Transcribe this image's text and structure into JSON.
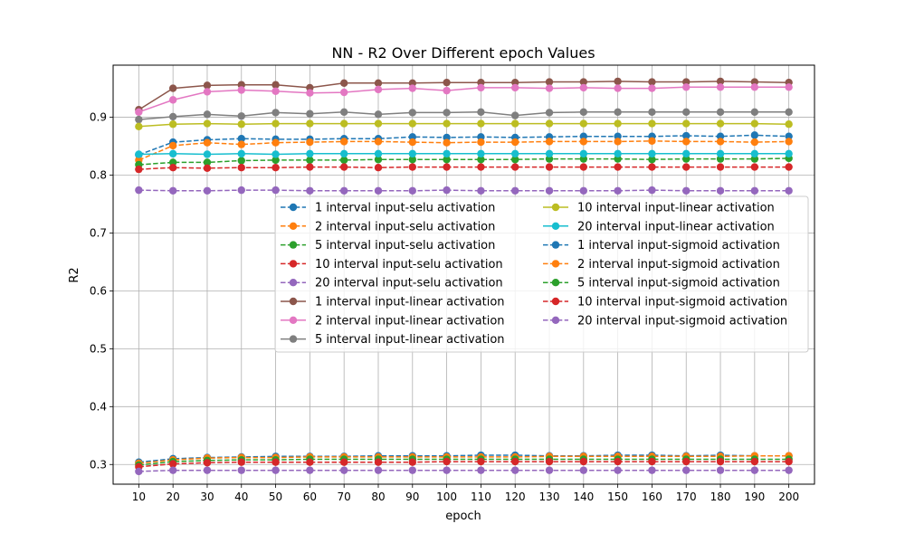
{
  "chart_data": {
    "type": "line",
    "title": "NN - R2 Over Different epoch Values",
    "xlabel": "epoch",
    "ylabel": "R2",
    "x": [
      10,
      20,
      30,
      40,
      50,
      60,
      70,
      80,
      90,
      100,
      110,
      120,
      130,
      140,
      150,
      160,
      170,
      180,
      190,
      200
    ],
    "xticks": [
      "10",
      "20",
      "30",
      "40",
      "50",
      "60",
      "70",
      "80",
      "90",
      "100",
      "110",
      "120",
      "130",
      "140",
      "150",
      "160",
      "170",
      "180",
      "190",
      "200"
    ],
    "yticks": [
      "0.3",
      "0.4",
      "0.5",
      "0.6",
      "0.7",
      "0.8",
      "0.9"
    ],
    "ylim": [
      0.266,
      0.99
    ],
    "xlim": [
      2.5,
      207.5
    ],
    "grid": true,
    "legend_position": "center-right",
    "series": [
      {
        "name": "1 interval input-selu activation",
        "color": "#1f77b4",
        "style": "dashed",
        "values": [
          0.835,
          0.857,
          0.861,
          0.863,
          0.862,
          0.862,
          0.863,
          0.863,
          0.866,
          0.865,
          0.866,
          0.865,
          0.866,
          0.867,
          0.867,
          0.867,
          0.868,
          0.867,
          0.869,
          0.867
        ]
      },
      {
        "name": "2 interval input-selu activation",
        "color": "#ff7f0e",
        "style": "dashed",
        "values": [
          0.826,
          0.851,
          0.856,
          0.853,
          0.856,
          0.857,
          0.858,
          0.858,
          0.857,
          0.856,
          0.857,
          0.857,
          0.858,
          0.858,
          0.858,
          0.859,
          0.858,
          0.858,
          0.857,
          0.858
        ]
      },
      {
        "name": "5 interval input-selu activation",
        "color": "#2ca02c",
        "style": "dashed",
        "values": [
          0.818,
          0.822,
          0.822,
          0.825,
          0.826,
          0.826,
          0.826,
          0.827,
          0.827,
          0.827,
          0.827,
          0.827,
          0.828,
          0.828,
          0.828,
          0.827,
          0.828,
          0.828,
          0.828,
          0.829
        ]
      },
      {
        "name": "10 interval input-selu activation",
        "color": "#d62728",
        "style": "dashed",
        "values": [
          0.81,
          0.813,
          0.812,
          0.813,
          0.813,
          0.814,
          0.814,
          0.813,
          0.814,
          0.814,
          0.814,
          0.814,
          0.814,
          0.814,
          0.814,
          0.814,
          0.814,
          0.814,
          0.814,
          0.814
        ]
      },
      {
        "name": "20 interval input-selu activation",
        "color": "#9467bd",
        "style": "dashed",
        "values": [
          0.774,
          0.773,
          0.773,
          0.774,
          0.774,
          0.773,
          0.773,
          0.773,
          0.773,
          0.774,
          0.773,
          0.773,
          0.773,
          0.773,
          0.773,
          0.774,
          0.773,
          0.773,
          0.773,
          0.773
        ]
      },
      {
        "name": "1 interval input-linear activation",
        "color": "#8c564b",
        "style": "solid",
        "values": [
          0.913,
          0.95,
          0.955,
          0.956,
          0.956,
          0.951,
          0.959,
          0.959,
          0.959,
          0.96,
          0.96,
          0.96,
          0.961,
          0.961,
          0.962,
          0.961,
          0.961,
          0.962,
          0.961,
          0.96
        ]
      },
      {
        "name": "2 interval input-linear activation",
        "color": "#e377c2",
        "style": "solid",
        "values": [
          0.909,
          0.93,
          0.944,
          0.947,
          0.945,
          0.942,
          0.943,
          0.948,
          0.95,
          0.946,
          0.951,
          0.951,
          0.95,
          0.951,
          0.95,
          0.95,
          0.952,
          0.952,
          0.952,
          0.952
        ]
      },
      {
        "name": "5 interval input-linear activation",
        "color": "#7f7f7f",
        "style": "solid",
        "values": [
          0.896,
          0.901,
          0.905,
          0.902,
          0.908,
          0.906,
          0.909,
          0.905,
          0.908,
          0.908,
          0.909,
          0.903,
          0.908,
          0.909,
          0.909,
          0.909,
          0.909,
          0.909,
          0.909,
          0.909
        ]
      },
      {
        "name": "10 interval input-linear activation",
        "color": "#bcbd22",
        "style": "solid",
        "values": [
          0.884,
          0.888,
          0.889,
          0.888,
          0.889,
          0.889,
          0.889,
          0.889,
          0.889,
          0.889,
          0.889,
          0.889,
          0.889,
          0.889,
          0.889,
          0.889,
          0.889,
          0.889,
          0.889,
          0.888
        ]
      },
      {
        "name": "20 interval input-linear activation",
        "color": "#17becf",
        "style": "solid",
        "values": [
          0.836,
          0.837,
          0.836,
          0.837,
          0.836,
          0.837,
          0.837,
          0.837,
          0.837,
          0.837,
          0.837,
          0.837,
          0.837,
          0.837,
          0.837,
          0.837,
          0.837,
          0.837,
          0.837,
          0.837
        ]
      },
      {
        "name": "1 interval input-sigmoid activation",
        "color": "#1f77b4",
        "style": "dashed",
        "values": [
          0.304,
          0.31,
          0.312,
          0.313,
          0.314,
          0.314,
          0.314,
          0.315,
          0.315,
          0.315,
          0.316,
          0.316,
          0.315,
          0.315,
          0.316,
          0.316,
          0.315,
          0.316,
          0.315,
          0.315
        ]
      },
      {
        "name": "2 interval input-sigmoid activation",
        "color": "#ff7f0e",
        "style": "dashed",
        "values": [
          0.302,
          0.308,
          0.311,
          0.312,
          0.312,
          0.313,
          0.313,
          0.313,
          0.313,
          0.313,
          0.313,
          0.313,
          0.314,
          0.314,
          0.314,
          0.314,
          0.314,
          0.314,
          0.315,
          0.315
        ]
      },
      {
        "name": "5 interval input-sigmoid activation",
        "color": "#2ca02c",
        "style": "dashed",
        "values": [
          0.299,
          0.305,
          0.307,
          0.308,
          0.308,
          0.309,
          0.309,
          0.309,
          0.309,
          0.309,
          0.309,
          0.309,
          0.309,
          0.309,
          0.309,
          0.309,
          0.309,
          0.309,
          0.309,
          0.309
        ]
      },
      {
        "name": "10 interval input-sigmoid activation",
        "color": "#d62728",
        "style": "dashed",
        "values": [
          0.296,
          0.301,
          0.303,
          0.304,
          0.304,
          0.304,
          0.304,
          0.304,
          0.304,
          0.305,
          0.305,
          0.305,
          0.305,
          0.305,
          0.305,
          0.305,
          0.305,
          0.305,
          0.305,
          0.305
        ]
      },
      {
        "name": "20 interval input-sigmoid activation",
        "color": "#9467bd",
        "style": "dashed",
        "values": [
          0.288,
          0.29,
          0.29,
          0.29,
          0.29,
          0.29,
          0.29,
          0.29,
          0.29,
          0.29,
          0.29,
          0.29,
          0.29,
          0.29,
          0.29,
          0.29,
          0.29,
          0.29,
          0.29,
          0.29
        ]
      }
    ]
  }
}
